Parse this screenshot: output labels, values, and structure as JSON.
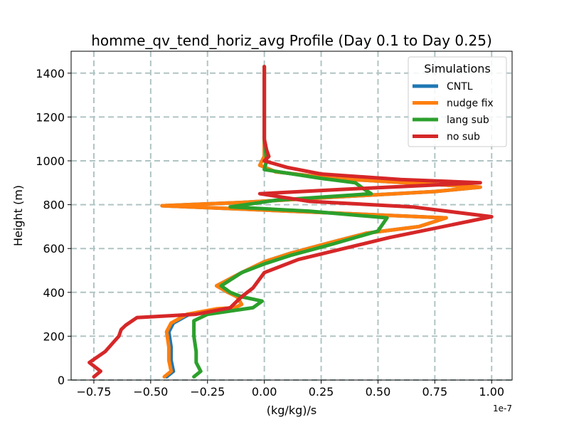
{
  "chart_data": {
    "type": "line",
    "title": "homme_qv_tend_horiz_avg Profile (Day 0.1 to Day 0.25)",
    "xlabel": "(kg/kg)/s",
    "ylabel": "Height (m)",
    "x_scale_label": "1e-7",
    "xlim": [
      -0.85,
      1.09
    ],
    "ylim": [
      0,
      1500
    ],
    "x_ticks": [
      -0.75,
      -0.5,
      -0.25,
      0.0,
      0.25,
      0.5,
      0.75,
      1.0
    ],
    "x_tick_labels": [
      "−0.75",
      "−0.50",
      "−0.25",
      "0.00",
      "0.25",
      "0.50",
      "0.75",
      "1.00"
    ],
    "y_ticks": [
      0,
      200,
      400,
      600,
      800,
      1000,
      1200,
      1400
    ],
    "y_tick_labels": [
      "0",
      "200",
      "400",
      "600",
      "800",
      "1000",
      "1200",
      "1400"
    ],
    "grid": true,
    "legend": {
      "title": "Simulations",
      "position": "top-right"
    },
    "series": [
      {
        "name": "CNTL",
        "color": "#1f77b4",
        "points": [
          [
            -0.43,
            15
          ],
          [
            -0.4,
            40
          ],
          [
            -0.41,
            90
          ],
          [
            -0.41,
            150
          ],
          [
            -0.42,
            220
          ],
          [
            -0.4,
            260
          ],
          [
            -0.33,
            300
          ],
          [
            -0.2,
            325
          ],
          [
            -0.13,
            330
          ],
          [
            -0.1,
            345
          ],
          [
            -0.12,
            380
          ],
          [
            -0.16,
            400
          ],
          [
            -0.21,
            430
          ],
          [
            -0.1,
            490
          ],
          [
            0.0,
            540
          ],
          [
            0.12,
            580
          ],
          [
            0.3,
            630
          ],
          [
            0.45,
            670
          ],
          [
            0.68,
            700
          ],
          [
            0.8,
            740
          ],
          [
            -0.1,
            780
          ],
          [
            -0.45,
            795
          ],
          [
            -0.1,
            810
          ],
          [
            0.4,
            840
          ],
          [
            0.75,
            860
          ],
          [
            0.95,
            880
          ],
          [
            0.3,
            920
          ],
          [
            0.05,
            950
          ],
          [
            -0.02,
            980
          ],
          [
            0.0,
            1020
          ],
          [
            0.0,
            1100
          ],
          [
            0.0,
            1200
          ],
          [
            0.0,
            1300
          ],
          [
            0.0,
            1430
          ]
        ]
      },
      {
        "name": "nudge fix",
        "color": "#ff7f0e",
        "points": [
          [
            -0.44,
            15
          ],
          [
            -0.41,
            40
          ],
          [
            -0.42,
            90
          ],
          [
            -0.42,
            150
          ],
          [
            -0.43,
            220
          ],
          [
            -0.41,
            260
          ],
          [
            -0.34,
            300
          ],
          [
            -0.21,
            325
          ],
          [
            -0.13,
            330
          ],
          [
            -0.1,
            345
          ],
          [
            -0.12,
            380
          ],
          [
            -0.16,
            400
          ],
          [
            -0.21,
            430
          ],
          [
            -0.1,
            490
          ],
          [
            0.0,
            540
          ],
          [
            0.12,
            580
          ],
          [
            0.3,
            630
          ],
          [
            0.45,
            670
          ],
          [
            0.68,
            700
          ],
          [
            0.8,
            740
          ],
          [
            -0.1,
            780
          ],
          [
            -0.45,
            795
          ],
          [
            -0.1,
            810
          ],
          [
            0.4,
            840
          ],
          [
            0.75,
            860
          ],
          [
            0.95,
            880
          ],
          [
            0.3,
            920
          ],
          [
            0.05,
            950
          ],
          [
            -0.02,
            980
          ],
          [
            0.0,
            1020
          ],
          [
            0.0,
            1100
          ],
          [
            0.0,
            1200
          ],
          [
            0.0,
            1300
          ],
          [
            0.0,
            1430
          ]
        ]
      },
      {
        "name": "lang sub",
        "color": "#2ca02c",
        "points": [
          [
            -0.31,
            15
          ],
          [
            -0.28,
            40
          ],
          [
            -0.3,
            80
          ],
          [
            -0.3,
            130
          ],
          [
            -0.31,
            200
          ],
          [
            -0.31,
            270
          ],
          [
            -0.25,
            300
          ],
          [
            -0.05,
            330
          ],
          [
            -0.01,
            360
          ],
          [
            -0.1,
            380
          ],
          [
            -0.15,
            400
          ],
          [
            -0.19,
            430
          ],
          [
            -0.1,
            490
          ],
          [
            0.0,
            530
          ],
          [
            0.12,
            570
          ],
          [
            0.3,
            620
          ],
          [
            0.5,
            680
          ],
          [
            0.54,
            740
          ],
          [
            0.2,
            770
          ],
          [
            -0.15,
            790
          ],
          [
            0.05,
            820
          ],
          [
            0.47,
            850
          ],
          [
            0.44,
            870
          ],
          [
            0.4,
            900
          ],
          [
            0.25,
            920
          ],
          [
            0.0,
            960
          ],
          [
            0.01,
            1000
          ],
          [
            0.0,
            1100
          ],
          [
            0.0,
            1200
          ],
          [
            0.0,
            1300
          ],
          [
            0.0,
            1430
          ]
        ]
      },
      {
        "name": "no sub",
        "color": "#d62728",
        "points": [
          [
            -0.75,
            15
          ],
          [
            -0.72,
            40
          ],
          [
            -0.77,
            80
          ],
          [
            -0.7,
            130
          ],
          [
            -0.64,
            200
          ],
          [
            -0.63,
            230
          ],
          [
            -0.61,
            250
          ],
          [
            -0.56,
            285
          ],
          [
            -0.3,
            300
          ],
          [
            -0.15,
            330
          ],
          [
            -0.12,
            360
          ],
          [
            -0.1,
            380
          ],
          [
            -0.05,
            420
          ],
          [
            0.0,
            490
          ],
          [
            0.15,
            550
          ],
          [
            0.35,
            600
          ],
          [
            0.55,
            650
          ],
          [
            1.0,
            745
          ],
          [
            0.65,
            790
          ],
          [
            0.2,
            815
          ],
          [
            -0.02,
            850
          ],
          [
            0.35,
            870
          ],
          [
            0.95,
            900
          ],
          [
            0.6,
            915
          ],
          [
            0.25,
            940
          ],
          [
            0.1,
            970
          ],
          [
            0.0,
            1000
          ],
          [
            0.02,
            1020
          ],
          [
            0.01,
            1050
          ],
          [
            0.0,
            1100
          ],
          [
            0.0,
            1200
          ],
          [
            0.0,
            1300
          ],
          [
            0.0,
            1430
          ]
        ]
      }
    ]
  }
}
